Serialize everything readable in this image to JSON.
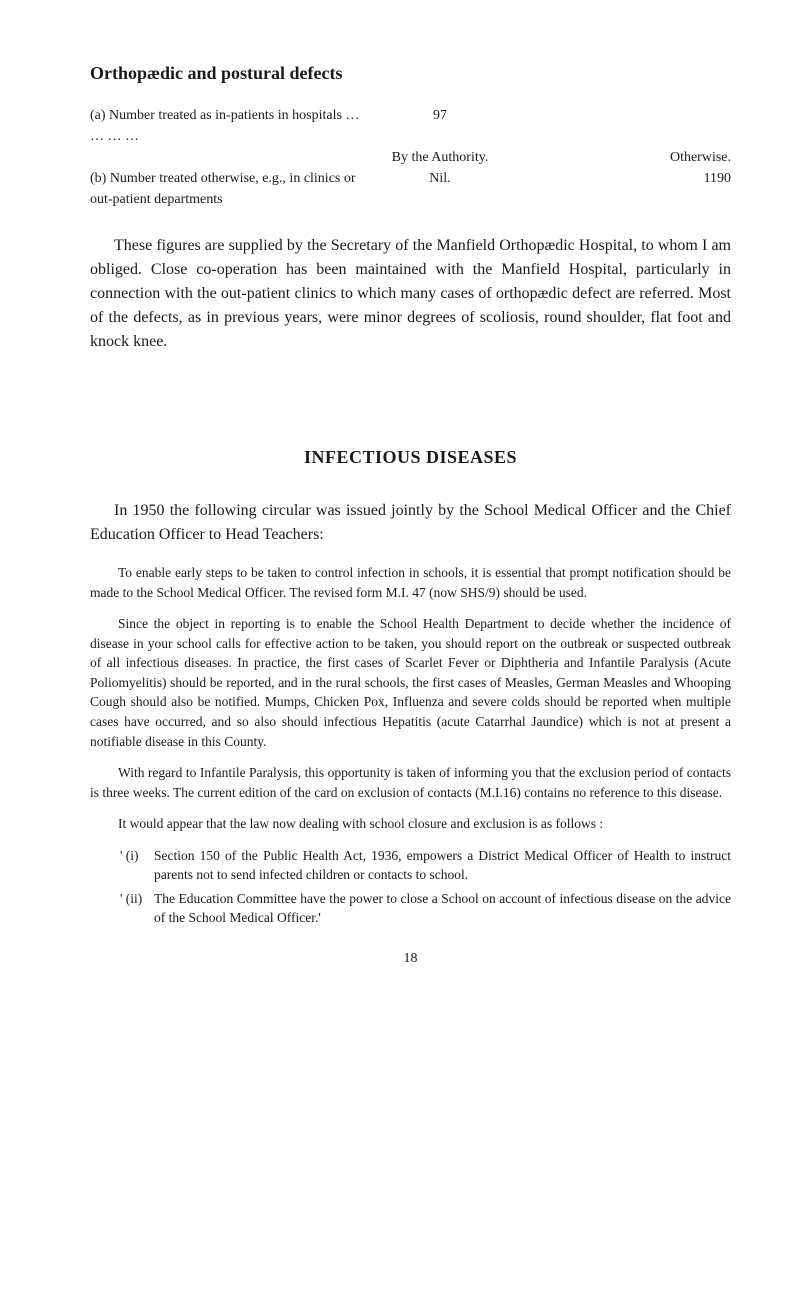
{
  "heading": "Orthopædic and postural defects",
  "table": {
    "rowA_label": "(a) Number treated as in-patients in hospitals   …   …   …   …",
    "rowA_val": "97",
    "header_auth": "By the Authority.",
    "header_other": "Otherwise.",
    "rowB_label": "(b) Number treated otherwise, e.g., in clinics or out-patient departments",
    "rowB_auth": "Nil.",
    "rowB_other": "1190"
  },
  "para1": "These figures are supplied by the Secretary of the Manfield Orthopædic Hospital, to whom I am obliged. Close co-operation has been maintained with the Manfield Hospital, particularly in connection with the out-patient clinics to which many cases of orthopædic defect are referred. Most of the defects, as in previous years, were minor degrees of scoliosis, round shoulder, flat foot and knock knee.",
  "sectionTitle": "INFECTIOUS DISEASES",
  "para2": "In 1950 the following circular was issued jointly by the School Medical Officer and the Chief Education Officer to Head Teachers:",
  "small1": "To enable early steps to be taken to control infection in schools, it is essential that prompt notification should be made to the School Medical Officer. The revised form M.I. 47 (now SHS/9) should be used.",
  "small2": "Since the object in reporting is to enable the School Health Depart­ment to decide whether the incidence of disease in your school calls for effective action to be taken, you should report on the outbreak or sus­pected outbreak of all infectious diseases. In practice, the first cases of Scarlet Fever or Diphtheria and Infantile Paralysis (Acute Polio­myelitis) should be reported, and in the rural schools, the first cases of Measles, German Measles and Whooping Cough should also be notified. Mumps, Chicken Pox, Influenza and severe colds should be reported when multiple cases have occurred, and so also should infectious Hepatitis (acute Catarrhal Jaundice) which is not at present a notifiable disease in this County.",
  "small3": "With regard to Infantile Paralysis, this opportunity is taken of informing you that the exclusion period of contacts is three weeks. The current edition of the card on exclusion of contacts (M.I.16) contains no reference to this disease.",
  "small4": "It would appear that the law now dealing with school closure and exclusion is as follows :",
  "list": {
    "i_marker": "' (i)",
    "i_text": "Section 150 of the Public Health Act, 1936, empowers a District Medical Officer of Health to instruct parents not to send infected children or contacts to school.",
    "ii_marker": "' (ii)",
    "ii_text": "The Education Committee have the power to close a School on account of infectious disease on the advice of the School Medical Officer.'"
  },
  "pageNumber": "18"
}
